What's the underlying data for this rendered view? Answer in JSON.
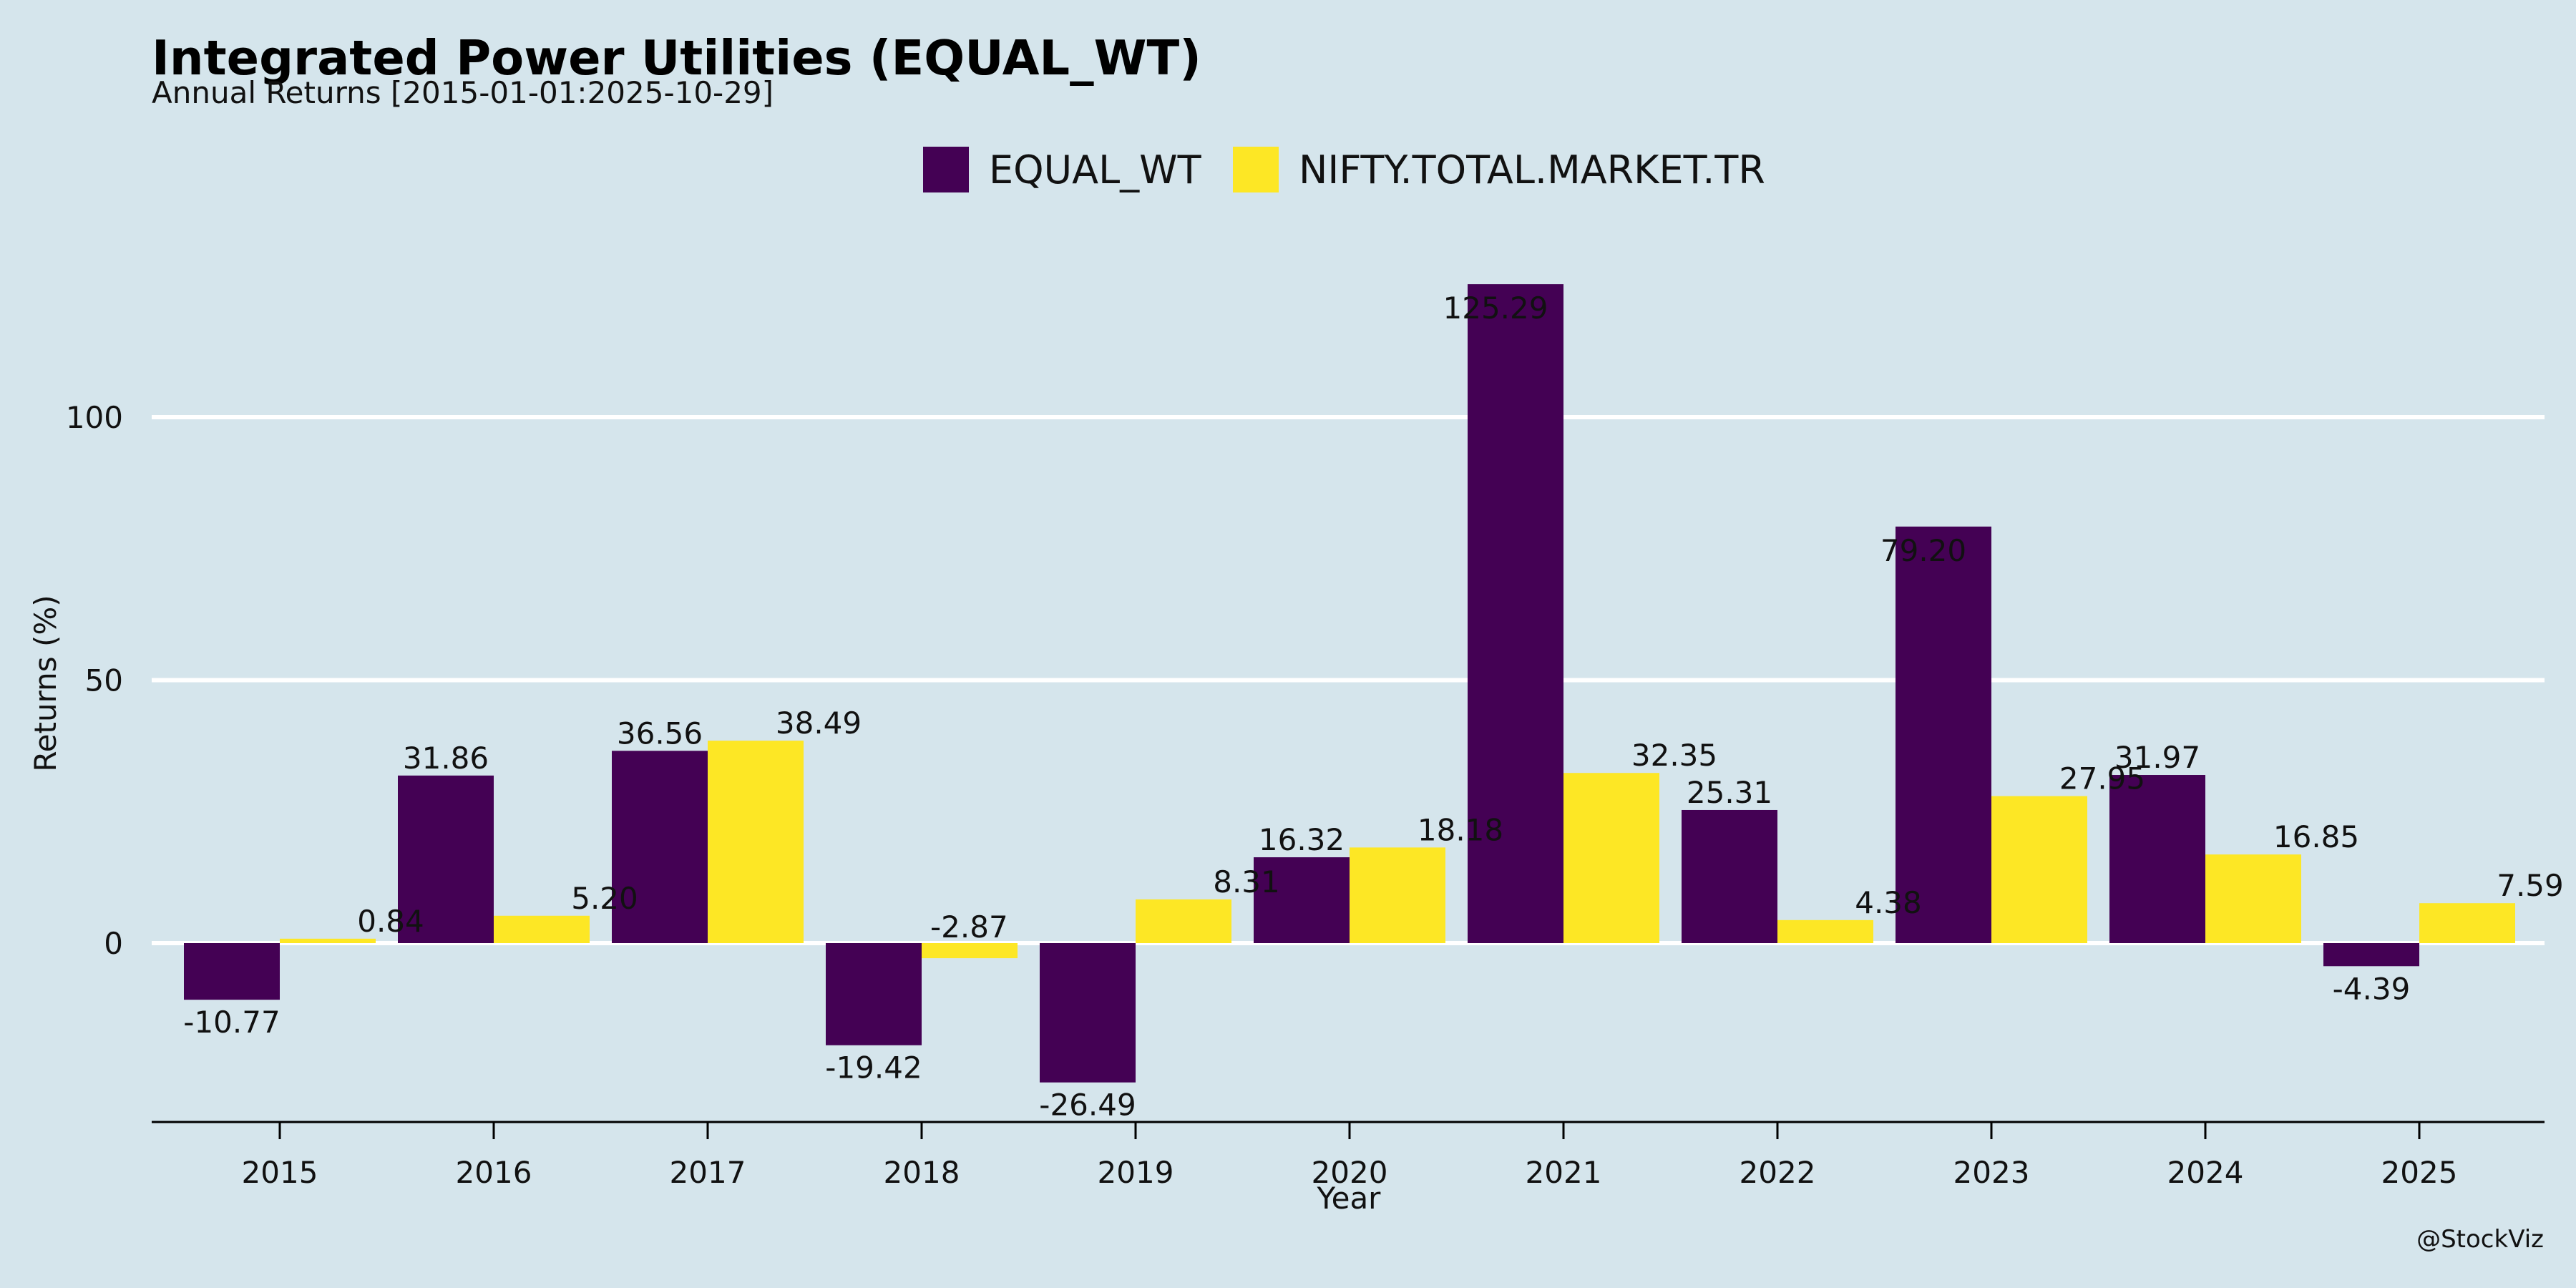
{
  "chart_data": {
    "type": "bar",
    "title": "Integrated Power Utilities (EQUAL_WT)",
    "subtitle": "Annual Returns [2015-01-01:2025-10-29]",
    "xlabel": "Year",
    "ylabel": "Returns (%)",
    "categories": [
      "2015",
      "2016",
      "2017",
      "2018",
      "2019",
      "2020",
      "2021",
      "2022",
      "2023",
      "2024",
      "2025"
    ],
    "series": [
      {
        "name": "EQUAL_WT",
        "color": "#440154",
        "values": [
          -10.77,
          31.86,
          36.56,
          -19.42,
          -26.49,
          16.32,
          125.29,
          25.31,
          79.2,
          31.97,
          -4.39
        ],
        "labels": [
          "-10.77",
          "31.86",
          "36.56",
          "-19.42",
          "-26.49",
          "16.32",
          "125.29",
          "25.31",
          "79.20",
          "31.97",
          "-4.39"
        ]
      },
      {
        "name": "NIFTY.TOTAL.MARKET.TR",
        "color": "#fde725",
        "values": [
          0.84,
          5.2,
          38.49,
          -2.87,
          8.31,
          18.18,
          32.35,
          4.38,
          27.95,
          16.85,
          7.59
        ],
        "labels": [
          "0.84",
          "5.20",
          "38.49",
          "-2.87",
          "8.31",
          "18.18",
          "32.35",
          "4.38",
          "27.95",
          "16.85",
          "7.59"
        ]
      }
    ],
    "yticks": [
      0,
      50,
      100
    ],
    "ytick_labels": [
      "0",
      "50",
      "100"
    ],
    "ylim": [
      -34,
      140
    ],
    "grid": true,
    "legend_position": "top-center",
    "credit": "@StockViz"
  }
}
